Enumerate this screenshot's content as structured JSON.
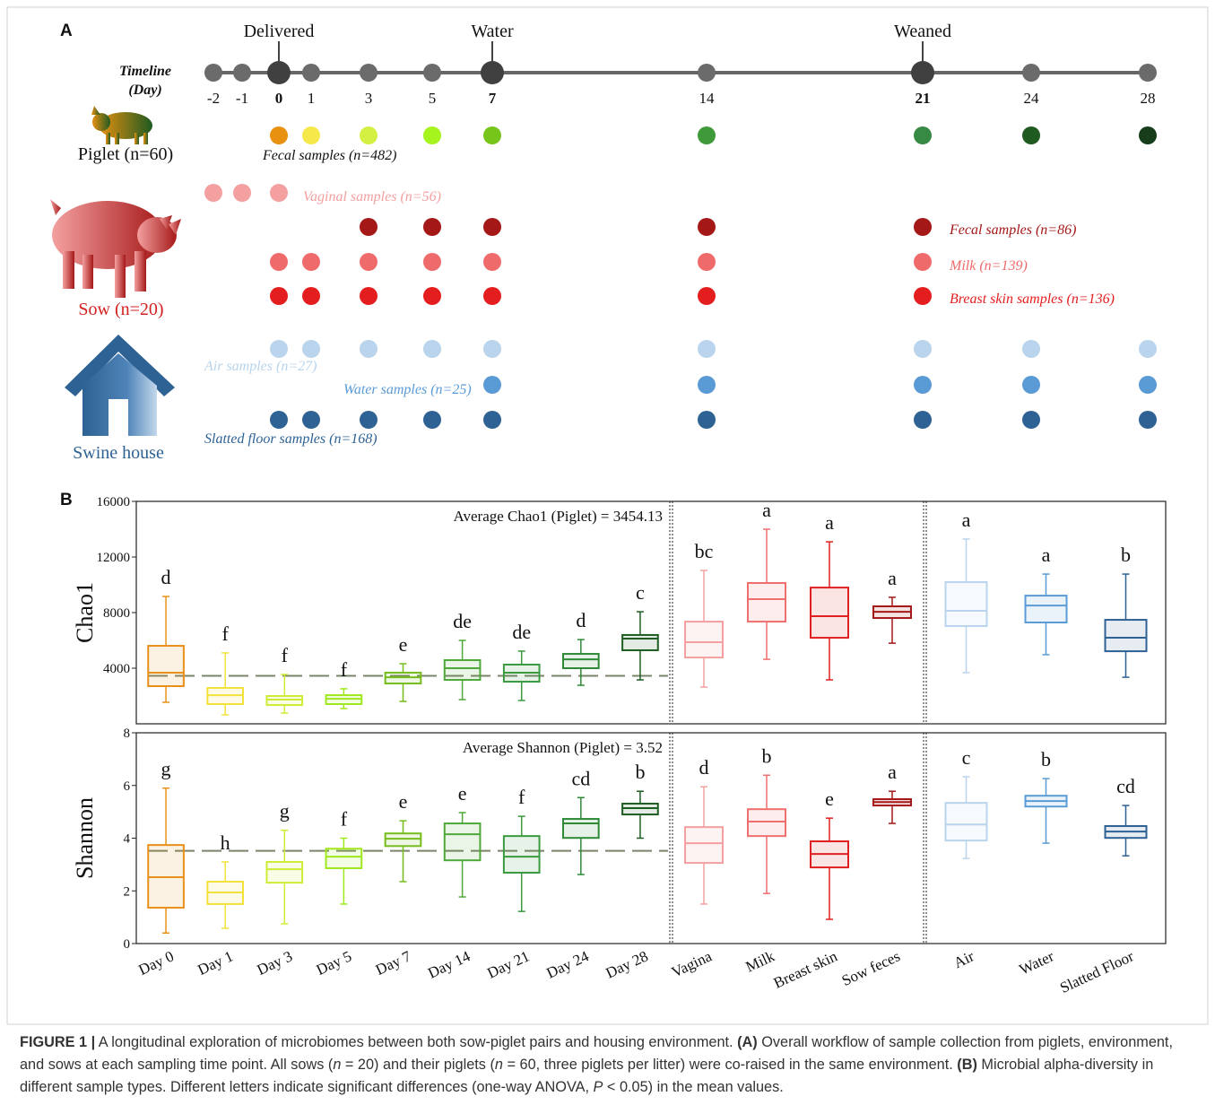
{
  "panel_a": {
    "letter": "A",
    "timeline_label": [
      "Timeline",
      "(Day)"
    ],
    "days": [
      -2,
      -1,
      0,
      1,
      3,
      5,
      7,
      14,
      21,
      24,
      28
    ],
    "events": [
      {
        "day": 0,
        "label": "Delivered"
      },
      {
        "day": 7,
        "label": "Water"
      },
      {
        "day": 21,
        "label": "Weaned"
      }
    ],
    "groups": [
      {
        "label": "Piglet (n=60)",
        "rows": [
          {
            "label": "Fecal samples (n=482)",
            "days": [
              0,
              1,
              3,
              5,
              7,
              14,
              21,
              24,
              28
            ],
            "colors": [
              "#e8900f",
              "#f6e84a",
              "#d4f043",
              "#a6f41e",
              "#77c41b",
              "#3f9a3a",
              "#378a43",
              "#1f5a21",
              "#173d1b"
            ]
          }
        ]
      },
      {
        "label": "Sow (n=20)",
        "rows": [
          {
            "label": "Vaginal samples (n=56)",
            "days": [
              -2,
              -1,
              0
            ],
            "color": "#f4a0a0"
          },
          {
            "label": "Fecal samples (n=86)",
            "days": [
              3,
              5,
              7,
              14,
              21
            ],
            "color": "#a51818"
          },
          {
            "label": "Milk (n=139)",
            "days": [
              0,
              1,
              3,
              5,
              7,
              14,
              21
            ],
            "color": "#ef6a6a"
          },
          {
            "label": "Breast skin samples (n=136)",
            "days": [
              0,
              1,
              3,
              5,
              7,
              14,
              21
            ],
            "color": "#e41e1e"
          }
        ]
      },
      {
        "label": "Swine house",
        "rows": [
          {
            "label": "Air samples (n=27)",
            "days": [
              0,
              1,
              3,
              5,
              7,
              14,
              21,
              24,
              28
            ],
            "color": "#b9d4ec"
          },
          {
            "label": "Water samples (n=25)",
            "days": [
              7,
              14,
              21,
              24,
              28
            ],
            "color": "#5b9bd5"
          },
          {
            "label": "Slatted floor samples (n=168)",
            "days": [
              0,
              1,
              3,
              5,
              7,
              14,
              21,
              24,
              28
            ],
            "color": "#2e6294"
          }
        ]
      }
    ]
  },
  "chart_data": {
    "type": "box",
    "letter": "B",
    "categories": [
      "Day 0",
      "Day 1",
      "Day 3",
      "Day 5",
      "Day 7",
      "Day 14",
      "Day 21",
      "Day 24",
      "Day 28",
      "Vagina",
      "Milk",
      "Breast skin",
      "Sow feces",
      "Air",
      "Water",
      "Slatted Floor"
    ],
    "colors": [
      "#e8901a",
      "#f2e23a",
      "#cdec35",
      "#a0e81e",
      "#74bd1c",
      "#4fa83a",
      "#3a9a3f",
      "#2f8a37",
      "#1e5e22",
      "#f4a0a0",
      "#ef6f6f",
      "#e02020",
      "#a51818",
      "#b9d4ec",
      "#5b9bd5",
      "#2e6294"
    ],
    "panels": [
      {
        "ylabel": "Chao1",
        "ylim": [
          0,
          16000
        ],
        "yticks": [
          4000,
          8000,
          12000,
          16000
        ],
        "reference": 3454.13,
        "annotation": "Average Chao1 (Piglet) = 3454.13",
        "boxes": [
          {
            "whisker_low": 1550,
            "q1": 2710,
            "median": 3680,
            "q3": 5610,
            "whisker_high": 9160,
            "letter": "d"
          },
          {
            "whisker_low": 650,
            "q1": 1420,
            "median": 2060,
            "q3": 2580,
            "whisker_high": 5100,
            "letter": "f"
          },
          {
            "whisker_low": 770,
            "q1": 1350,
            "median": 1740,
            "q3": 2000,
            "whisker_high": 3550,
            "letter": "f"
          },
          {
            "whisker_low": 1100,
            "q1": 1420,
            "median": 1800,
            "q3": 2060,
            "whisker_high": 2520,
            "letter": "f"
          },
          {
            "whisker_low": 1610,
            "q1": 2900,
            "median": 3350,
            "q3": 3680,
            "whisker_high": 4320,
            "letter": "e"
          },
          {
            "whisker_low": 1740,
            "q1": 3160,
            "median": 4000,
            "q3": 4580,
            "whisker_high": 6000,
            "letter": "de"
          },
          {
            "whisker_low": 1680,
            "q1": 3030,
            "median": 3680,
            "q3": 4260,
            "whisker_high": 5230,
            "letter": "de"
          },
          {
            "whisker_low": 2770,
            "q1": 4000,
            "median": 4640,
            "q3": 5030,
            "whisker_high": 6060,
            "letter": "d"
          },
          {
            "whisker_low": 3160,
            "q1": 5290,
            "median": 6130,
            "q3": 6390,
            "whisker_high": 8060,
            "letter": "c"
          },
          {
            "whisker_low": 2640,
            "q1": 4770,
            "median": 5870,
            "q3": 7350,
            "whisker_high": 11030,
            "letter": "bc"
          },
          {
            "whisker_low": 4640,
            "q1": 7350,
            "median": 8970,
            "q3": 10130,
            "whisker_high": 14000,
            "letter": "a"
          },
          {
            "whisker_low": 3160,
            "q1": 6190,
            "median": 7740,
            "q3": 9800,
            "whisker_high": 13090,
            "letter": "a"
          },
          {
            "whisker_low": 5800,
            "q1": 7610,
            "median": 8060,
            "q3": 8450,
            "whisker_high": 9100,
            "letter": "a"
          },
          {
            "whisker_low": 3680,
            "q1": 7030,
            "median": 8130,
            "q3": 10190,
            "whisker_high": 13290,
            "letter": "a"
          },
          {
            "whisker_low": 4970,
            "q1": 7290,
            "median": 8510,
            "q3": 9220,
            "whisker_high": 10770,
            "letter": "a"
          },
          {
            "whisker_low": 3350,
            "q1": 5220,
            "median": 6190,
            "q3": 7480,
            "whisker_high": 10770,
            "letter": "b"
          }
        ]
      },
      {
        "ylabel": "Shannon",
        "ylim": [
          0,
          8
        ],
        "yticks": [
          0,
          2,
          4,
          6,
          8
        ],
        "reference": 3.52,
        "annotation": "Average Shannon (Piglet) = 3.52",
        "boxes": [
          {
            "whisker_low": 0.4,
            "q1": 1.36,
            "median": 2.52,
            "q3": 3.74,
            "whisker_high": 5.9,
            "letter": "g"
          },
          {
            "whisker_low": 0.58,
            "q1": 1.5,
            "median": 1.94,
            "q3": 2.35,
            "whisker_high": 3.1,
            "letter": "h"
          },
          {
            "whisker_low": 0.75,
            "q1": 2.31,
            "median": 2.82,
            "q3": 3.1,
            "whisker_high": 4.3,
            "letter": "g"
          },
          {
            "whisker_low": 1.5,
            "q1": 2.86,
            "median": 3.3,
            "q3": 3.6,
            "whisker_high": 4.0,
            "letter": "f"
          },
          {
            "whisker_low": 2.35,
            "q1": 3.7,
            "median": 3.98,
            "q3": 4.18,
            "whisker_high": 4.66,
            "letter": "e"
          },
          {
            "whisker_low": 1.77,
            "q1": 3.16,
            "median": 4.15,
            "q3": 4.56,
            "whisker_high": 4.97,
            "letter": "e"
          },
          {
            "whisker_low": 1.22,
            "q1": 2.69,
            "median": 3.3,
            "q3": 4.08,
            "whisker_high": 4.83,
            "letter": "f"
          },
          {
            "whisker_low": 2.62,
            "q1": 4.01,
            "median": 4.56,
            "q3": 4.73,
            "whisker_high": 5.54,
            "letter": "cd"
          },
          {
            "whisker_low": 4.0,
            "q1": 4.9,
            "median": 5.14,
            "q3": 5.31,
            "whisker_high": 5.78,
            "letter": "b"
          },
          {
            "whisker_low": 1.5,
            "q1": 3.06,
            "median": 3.81,
            "q3": 4.42,
            "whisker_high": 5.95,
            "letter": "d"
          },
          {
            "whisker_low": 1.9,
            "q1": 4.08,
            "median": 4.63,
            "q3": 5.1,
            "whisker_high": 6.39,
            "letter": "b"
          },
          {
            "whisker_low": 0.92,
            "q1": 2.89,
            "median": 3.4,
            "q3": 3.88,
            "whisker_high": 4.76,
            "letter": "e"
          },
          {
            "whisker_low": 4.56,
            "q1": 5.24,
            "median": 5.37,
            "q3": 5.48,
            "whisker_high": 5.78,
            "letter": "a"
          },
          {
            "whisker_low": 3.23,
            "q1": 3.91,
            "median": 4.52,
            "q3": 5.34,
            "whisker_high": 6.33,
            "letter": "c"
          },
          {
            "whisker_low": 3.81,
            "q1": 5.2,
            "median": 5.41,
            "q3": 5.61,
            "whisker_high": 6.26,
            "letter": "b"
          },
          {
            "whisker_low": 3.33,
            "q1": 4.01,
            "median": 4.25,
            "q3": 4.46,
            "whisker_high": 5.24,
            "letter": "cd"
          }
        ]
      }
    ]
  },
  "caption": {
    "segments": [
      "FIGURE 1 |",
      " A longitudinal exploration of microbiomes between both sow-piglet pairs and housing environment. ",
      "(A)",
      " Overall workflow of sample collection from piglets, environment, and sows at each sampling time point. All sows (",
      "n",
      " = 20) and their piglets (",
      "n",
      " = 60, three piglets per litter) were co-raised in the same environment. ",
      "(B)",
      " Microbial alpha-diversity in different sample types. Different letters indicate significant differences (one-way ANOVA, ",
      "P",
      " < 0.05) in the mean values."
    ]
  }
}
